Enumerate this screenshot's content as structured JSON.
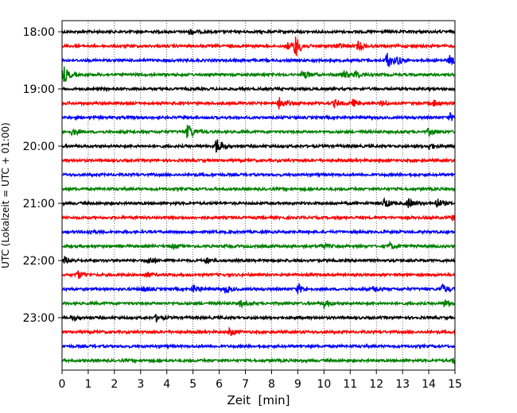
{
  "chart_data": {
    "type": "line",
    "title": "",
    "xlabel": "Zeit  [min]",
    "ylabel": "UTC (Lokalzeit = UTC + 01:00)",
    "xlim": [
      0,
      15
    ],
    "x_ticks": [
      "0",
      "1",
      "2",
      "3",
      "4",
      "5",
      "6",
      "7",
      "8",
      "9",
      "10",
      "11",
      "12",
      "13",
      "14",
      "15"
    ],
    "y_tick_labels": [
      "18:00",
      "19:00",
      "20:00",
      "21:00",
      "22:00",
      "23:00"
    ],
    "grid": "vertical dotted at each minute",
    "trace_colors": [
      "#000000",
      "#ff0000",
      "#0000ff",
      "#008000"
    ],
    "traces": [
      {
        "start": "18:00",
        "events": [
          {
            "t": 4.9,
            "amp": 0.25
          }
        ]
      },
      {
        "start": "18:15",
        "events": [
          {
            "t": 8.9,
            "amp": 1.0
          },
          {
            "t": 8.6,
            "amp": 0.3
          },
          {
            "t": 10.5,
            "amp": 0.25
          },
          {
            "t": 11.3,
            "amp": 0.4
          }
        ]
      },
      {
        "start": "18:30",
        "events": [
          {
            "t": 12.4,
            "amp": 0.8
          },
          {
            "t": 12.8,
            "amp": 0.3
          },
          {
            "t": 14.8,
            "amp": 0.4
          }
        ]
      },
      {
        "start": "18:45",
        "events": [
          {
            "t": 0.05,
            "amp": 0.8
          },
          {
            "t": 9.2,
            "amp": 0.5
          },
          {
            "t": 10.7,
            "amp": 0.45
          },
          {
            "t": 11.2,
            "amp": 0.35
          }
        ]
      },
      {
        "start": "19:00",
        "events": []
      },
      {
        "start": "19:15",
        "events": [
          {
            "t": 8.3,
            "amp": 0.6
          },
          {
            "t": 10.4,
            "amp": 0.35
          },
          {
            "t": 11.1,
            "amp": 0.3
          },
          {
            "t": 12.2,
            "amp": 0.25
          },
          {
            "t": 14.2,
            "amp": 0.3
          }
        ]
      },
      {
        "start": "19:30",
        "events": [
          {
            "t": 14.8,
            "amp": 0.35
          }
        ]
      },
      {
        "start": "19:45",
        "events": [
          {
            "t": 0.4,
            "amp": 0.3
          },
          {
            "t": 4.8,
            "amp": 0.8
          },
          {
            "t": 14.0,
            "amp": 0.35
          }
        ]
      },
      {
        "start": "20:00",
        "events": [
          {
            "t": 5.9,
            "amp": 0.75
          },
          {
            "t": 14.0,
            "amp": 0.3
          }
        ]
      },
      {
        "start": "20:15",
        "events": []
      },
      {
        "start": "20:30",
        "events": []
      },
      {
        "start": "20:45",
        "events": []
      },
      {
        "start": "21:00",
        "events": [
          {
            "t": 12.3,
            "amp": 0.45
          },
          {
            "t": 13.2,
            "amp": 0.45
          },
          {
            "t": 14.3,
            "amp": 0.45
          }
        ]
      },
      {
        "start": "21:15",
        "events": [
          {
            "t": 14.9,
            "amp": 0.25
          }
        ]
      },
      {
        "start": "21:30",
        "events": [
          {
            "t": 1.0,
            "amp": 0.2
          }
        ]
      },
      {
        "start": "21:45",
        "events": [
          {
            "t": 9.9,
            "amp": 0.3
          },
          {
            "t": 12.5,
            "amp": 0.3
          },
          {
            "t": 4.2,
            "amp": 0.2
          }
        ]
      },
      {
        "start": "22:00",
        "events": [
          {
            "t": 0.1,
            "amp": 0.3
          },
          {
            "t": 3.3,
            "amp": 0.35
          },
          {
            "t": 5.5,
            "amp": 0.25
          }
        ]
      },
      {
        "start": "22:15",
        "events": [
          {
            "t": 0.6,
            "amp": 0.35
          },
          {
            "t": 3.2,
            "amp": 0.25
          }
        ]
      },
      {
        "start": "22:30",
        "events": [
          {
            "t": 3.1,
            "amp": 0.25
          },
          {
            "t": 5.0,
            "amp": 0.35
          },
          {
            "t": 6.2,
            "amp": 0.35
          },
          {
            "t": 9.0,
            "amp": 0.45
          },
          {
            "t": 11.9,
            "amp": 0.3
          },
          {
            "t": 14.5,
            "amp": 0.45
          }
        ]
      },
      {
        "start": "22:45",
        "events": [
          {
            "t": 6.8,
            "amp": 0.3
          },
          {
            "t": 10.0,
            "amp": 0.35
          },
          {
            "t": 14.6,
            "amp": 0.35
          }
        ]
      },
      {
        "start": "23:00",
        "events": [
          {
            "t": 3.6,
            "amp": 0.3
          },
          {
            "t": 0.4,
            "amp": 0.2
          }
        ]
      },
      {
        "start": "23:15",
        "events": [
          {
            "t": 6.4,
            "amp": 0.35
          }
        ]
      },
      {
        "start": "23:30",
        "events": []
      },
      {
        "start": "23:45",
        "events": [
          {
            "t": 14.9,
            "amp": 0.2
          }
        ]
      }
    ]
  }
}
